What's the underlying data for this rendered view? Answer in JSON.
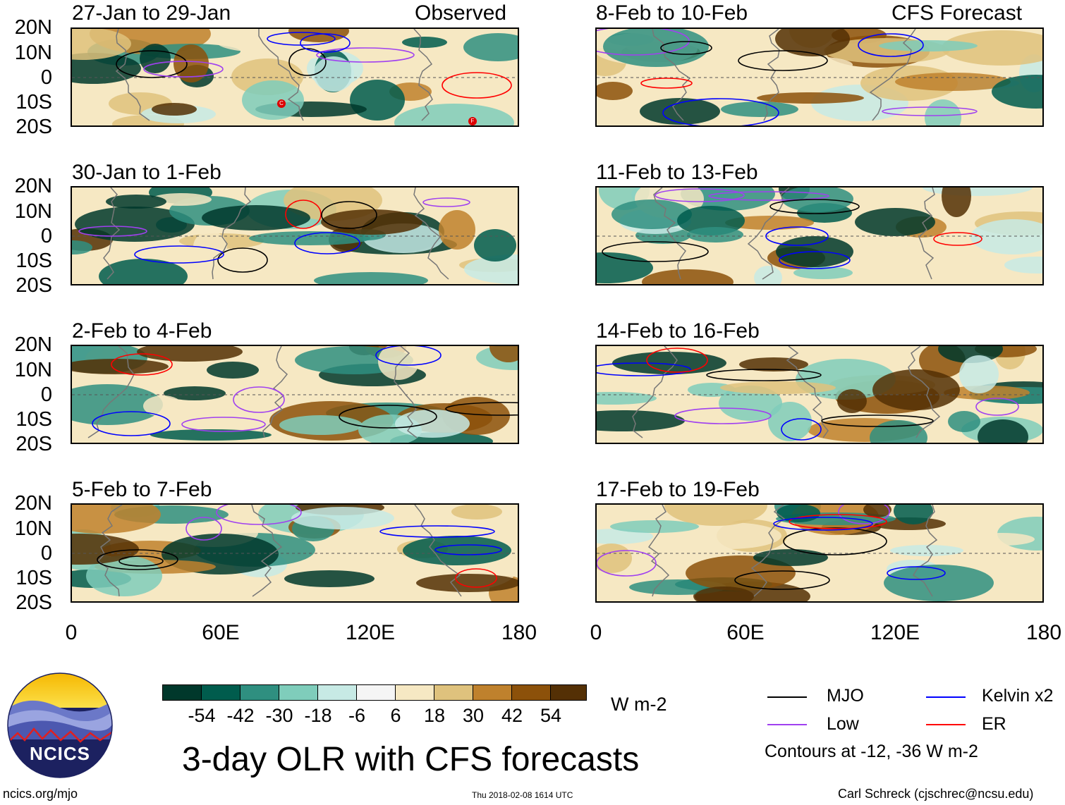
{
  "headers": {
    "left": "Observed",
    "right": "CFS Forecast"
  },
  "panels": [
    {
      "title": "27-Jan to 29-Jan",
      "column": "left",
      "row": 0
    },
    {
      "title": "30-Jan to 1-Feb",
      "column": "left",
      "row": 1
    },
    {
      "title": "2-Feb to 4-Feb",
      "column": "left",
      "row": 2
    },
    {
      "title": "5-Feb to 7-Feb",
      "column": "left",
      "row": 3
    },
    {
      "title": "8-Feb to 10-Feb",
      "column": "right",
      "row": 0
    },
    {
      "title": "11-Feb to 13-Feb",
      "column": "right",
      "row": 1
    },
    {
      "title": "14-Feb to 16-Feb",
      "column": "right",
      "row": 2
    },
    {
      "title": "17-Feb to 19-Feb",
      "column": "right",
      "row": 3
    }
  ],
  "lat_labels": [
    "20N",
    "10N",
    "0",
    "10S",
    "20S"
  ],
  "lon_labels": [
    "0",
    "60E",
    "120E",
    "180"
  ],
  "colorbar": {
    "unit": "W m-2",
    "labels": [
      "-54",
      "-42",
      "-30",
      "-18",
      "-6",
      "6",
      "18",
      "30",
      "42",
      "54"
    ],
    "colors": [
      "#00382b",
      "#005c4d",
      "#2f8f80",
      "#7fcdbb",
      "#c7eae5",
      "#f5f5f5",
      "#f6e8c3",
      "#dfc27d",
      "#bf812d",
      "#8c510a",
      "#543005"
    ]
  },
  "legend": {
    "items": [
      {
        "label": "MJO",
        "color": "#000000"
      },
      {
        "label": "Kelvin x2",
        "color": "#0000ff"
      },
      {
        "label": "Low",
        "color": "#a040f0"
      },
      {
        "label": "ER",
        "color": "#ff0000"
      }
    ],
    "note": "Contours at -12, -36 W m-2"
  },
  "storm_markers": [
    "C",
    "F"
  ],
  "title": "3-day OLR with CFS forecasts",
  "logo_text": "NCICS",
  "footer": {
    "left": "ncics.org/mjo",
    "center": "Thu 2018-02-08 1614 UTC",
    "right": "Carl Schreck (cjschrec@ncsu.edu)"
  }
}
